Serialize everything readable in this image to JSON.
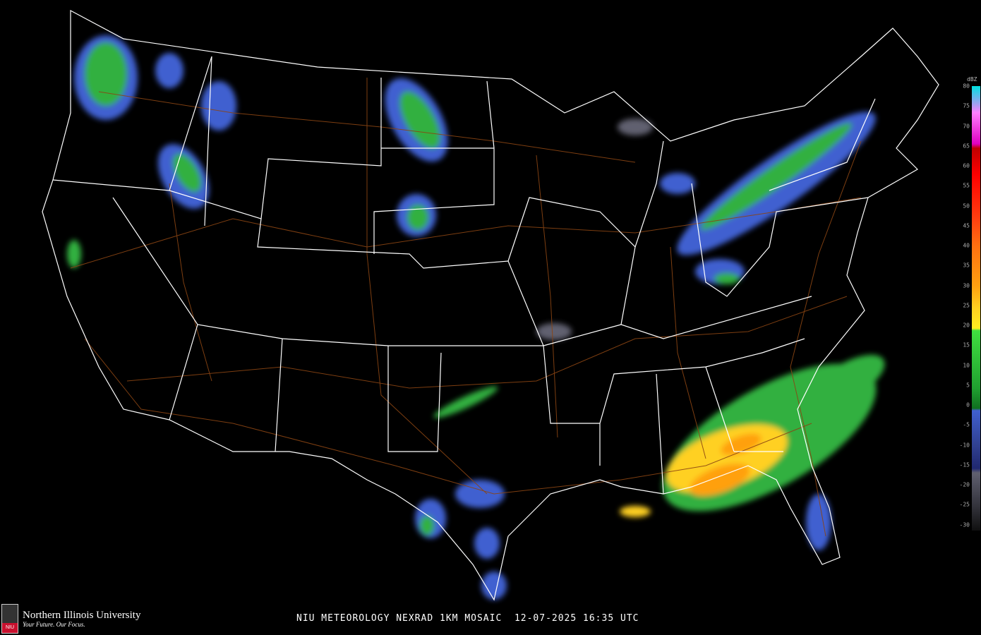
{
  "caption": {
    "product": "NIU METEOROLOGY NEXRAD 1KM MOSAIC",
    "datetime": "12-07-2025 16:35 UTC"
  },
  "logo": {
    "name": "Northern Illinois University",
    "tagline": "Your Future. Our Focus.",
    "mark": "NIU"
  },
  "legend": {
    "unit": "dBZ",
    "ticks": [
      "80",
      "75",
      "70",
      "65",
      "60",
      "55",
      "50",
      "45",
      "40",
      "35",
      "30",
      "25",
      "20",
      "15",
      "10",
      "5",
      "0",
      "-5",
      "-10",
      "-15",
      "-20",
      "-25",
      "-30"
    ],
    "colors": {
      "80": "#00e0e0",
      "75": "#a0a0f0",
      "70": "#ff80ff",
      "65": "#e000c0",
      "60": "#c00000",
      "55": "#ff0000",
      "50": "#ff4010",
      "45": "#ff7010",
      "40": "#ffa010",
      "35": "#ffd020",
      "30": "#40e040",
      "20": "#20a030",
      "10": "#4060d0",
      "0": "#304090",
      "-5": "#202870",
      "-10": "#606070",
      "-30": "#101010"
    }
  },
  "map": {
    "colors": {
      "borders": "#ffffff",
      "highways": "#8b4513",
      "background": "#000000"
    }
  }
}
